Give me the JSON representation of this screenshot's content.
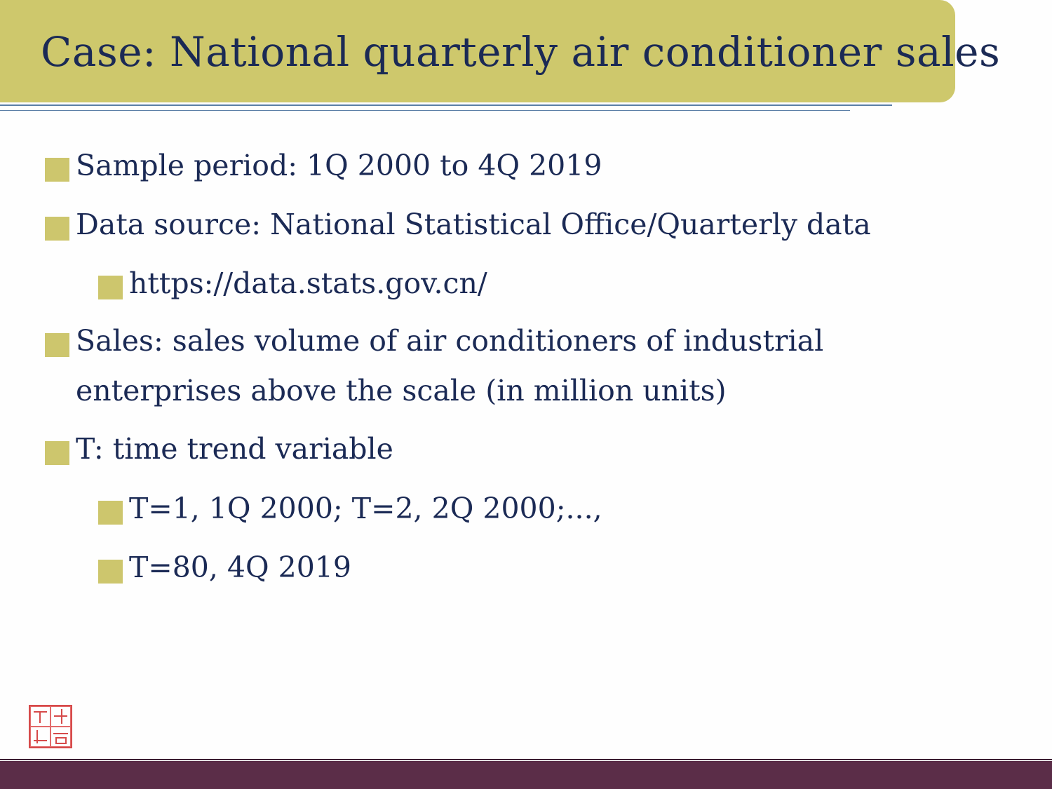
{
  "slide": {
    "title": "Case: National quarterly air conditioner sales",
    "bullets": [
      {
        "level": 1,
        "text": "Sample period: 1Q 2000 to 4Q 2019"
      },
      {
        "level": 1,
        "text": "Data source: National Statistical Office/Quarterly data"
      },
      {
        "level": 2,
        "text": "https://data.stats.gov.cn/"
      },
      {
        "level": 1,
        "text": "Sales: sales volume of air conditioners of industrial",
        "continuation": "enterprises above the scale (in million units)"
      },
      {
        "level": 1,
        "text": "T: time trend variable"
      },
      {
        "level": 2,
        "text": "T=1, 1Q 2000; T=2, 2Q 2000;...,"
      },
      {
        "level": 2,
        "text": "T=80, 4Q 2019"
      }
    ]
  },
  "theme": {
    "title_bar_color": "#cec86c",
    "bullet_square_color": "#cdc66d",
    "text_color": "#1b2a55",
    "footer_color": "#5b2d48",
    "seal_color": "#d64a4a"
  },
  "icons": {
    "logo": "red-seal-stamp-icon"
  }
}
